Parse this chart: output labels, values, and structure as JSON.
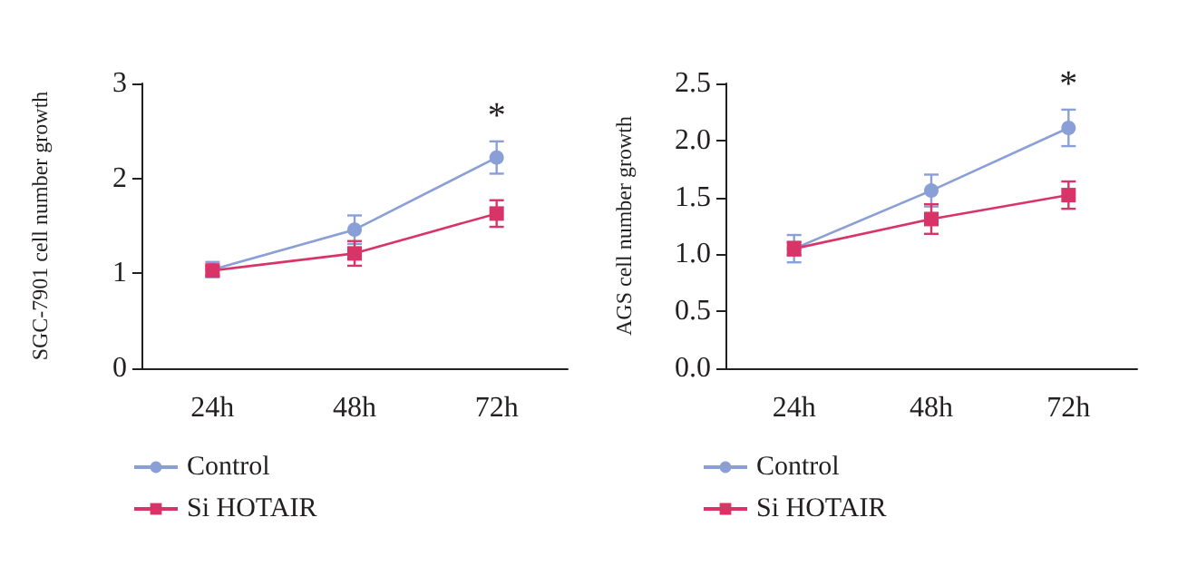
{
  "chart_data": [
    {
      "type": "line",
      "ylabel": "SGC-7901 cell number growth",
      "categories": [
        "24h",
        "48h",
        "72h"
      ],
      "series": [
        {
          "name": "Control",
          "color": "#8a9fd6",
          "marker": "circle",
          "values": [
            1.04,
            1.46,
            2.22
          ],
          "errors": [
            0.08,
            0.15,
            0.17
          ]
        },
        {
          "name": "Si HOTAIR",
          "color": "#d93468",
          "marker": "square",
          "values": [
            1.03,
            1.21,
            1.63
          ],
          "errors": [
            0.05,
            0.13,
            0.14
          ]
        }
      ],
      "ylim": [
        0,
        3
      ],
      "yticks": [
        0,
        1,
        2,
        3
      ],
      "grid": false,
      "legend": "bottom left",
      "annotations": [
        "*"
      ]
    },
    {
      "type": "line",
      "ylabel": "AGS cell number growth",
      "categories": [
        "24h",
        "48h",
        "72h"
      ],
      "series": [
        {
          "name": "Control",
          "color": "#8a9fd6",
          "marker": "circle",
          "values": [
            1.05,
            1.56,
            2.11
          ],
          "errors": [
            0.12,
            0.14,
            0.16
          ]
        },
        {
          "name": "Si HOTAIR",
          "color": "#d93468",
          "marker": "square",
          "values": [
            1.05,
            1.31,
            1.52
          ],
          "errors": [
            0.06,
            0.13,
            0.12
          ]
        }
      ],
      "ylim": [
        0,
        2.5
      ],
      "yticks": [
        {
          "value": 0,
          "label": "0.0"
        },
        {
          "value": 0.5,
          "label": "0.5"
        },
        {
          "value": 1,
          "label": "1.0"
        },
        {
          "value": 1.5,
          "label": "1.5"
        },
        {
          "value": 2,
          "label": "2.0"
        },
        {
          "value": 2.5,
          "label": "2.5"
        }
      ],
      "grid": false,
      "legend": "bottom left",
      "annotations": [
        "*"
      ]
    }
  ]
}
